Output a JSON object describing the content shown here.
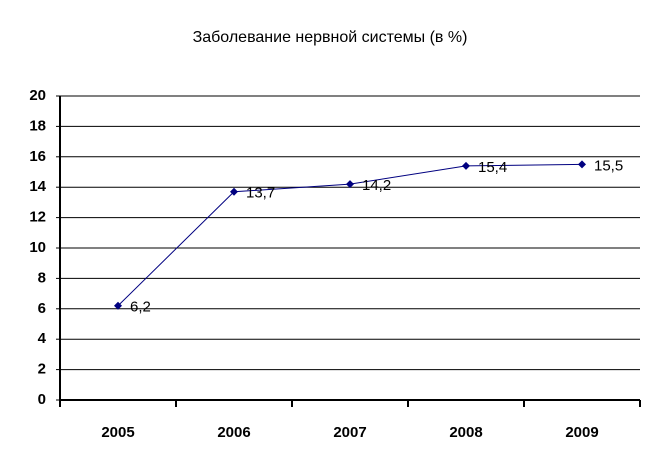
{
  "chart_data": {
    "type": "line",
    "title": "Заболевание нервной системы (в %)",
    "categories": [
      "2005",
      "2006",
      "2007",
      "2008",
      "2009"
    ],
    "values": [
      6.2,
      13.7,
      14.2,
      15.4,
      15.5
    ],
    "value_labels": [
      "6,2",
      "13,7",
      "14,2",
      "15,4",
      "15,5"
    ],
    "color": "#000080",
    "ylim": [
      0,
      20
    ],
    "yticks": [
      0,
      2,
      4,
      6,
      8,
      10,
      12,
      14,
      16,
      18,
      20
    ],
    "grid": true
  }
}
